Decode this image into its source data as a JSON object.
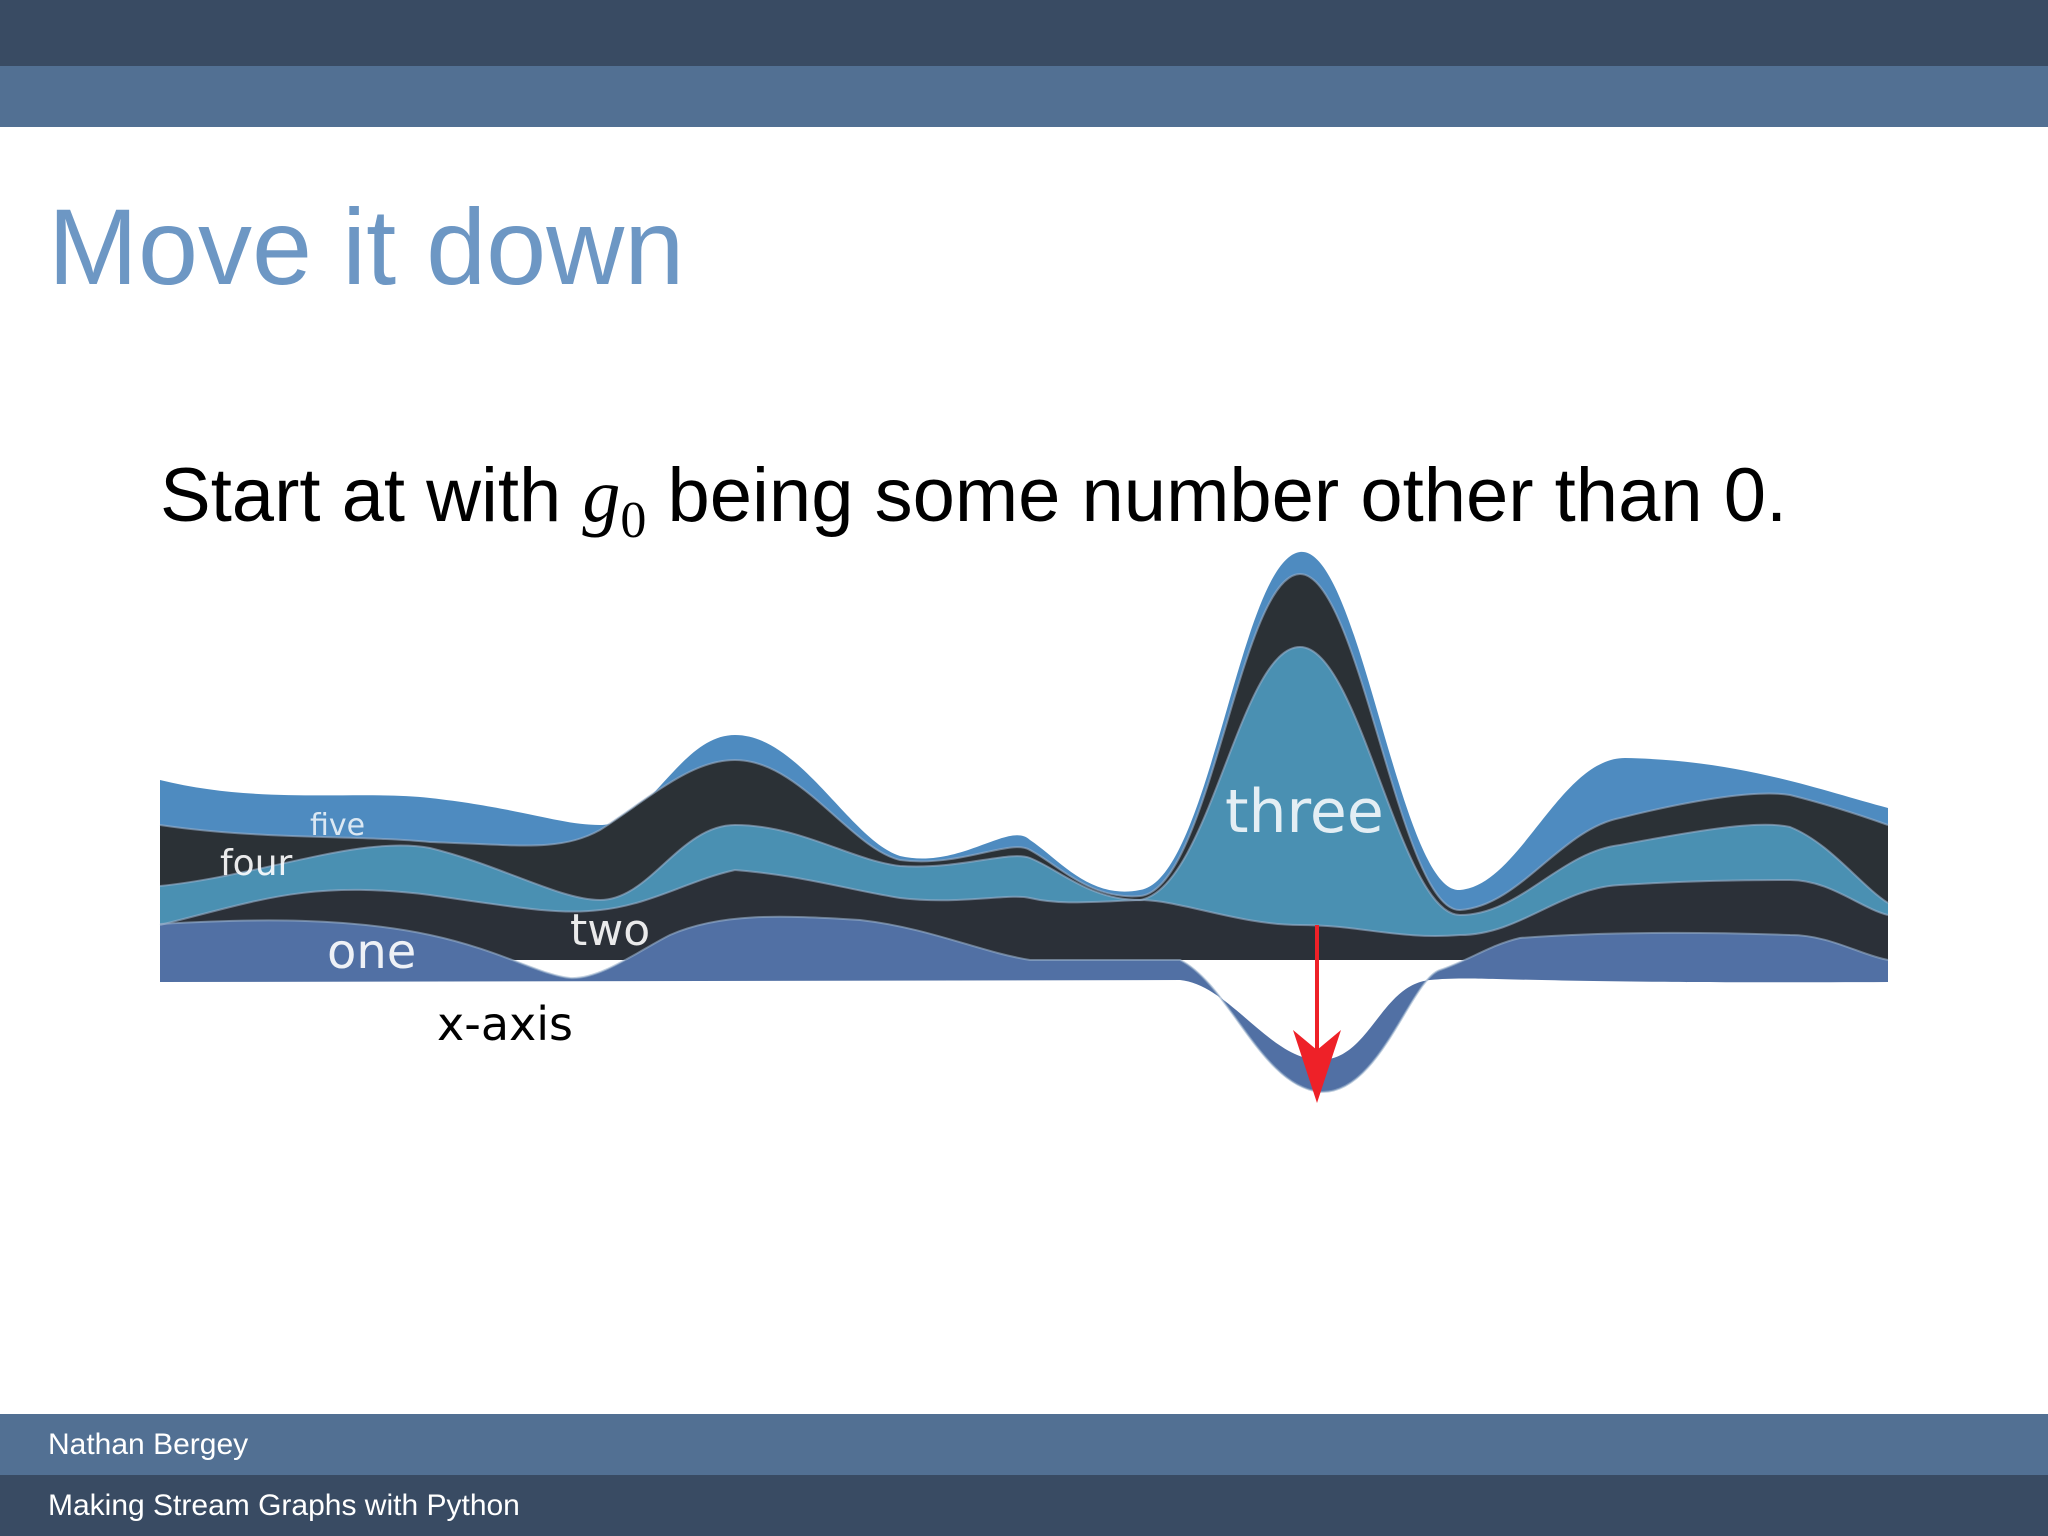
{
  "slide": {
    "title": "Move it down",
    "statement_before": "Start at with ",
    "math_var": "g",
    "math_sub": "0",
    "statement_after": " being some number other than 0."
  },
  "diagram": {
    "layers": [
      {
        "label": "one",
        "color": "#5170a4"
      },
      {
        "label": "two",
        "color": "#2b3038"
      },
      {
        "label": "three",
        "color": "#4a90b2"
      },
      {
        "label": "four",
        "color": "#2b3136"
      },
      {
        "label": "five",
        "color": "#4e8bc0"
      }
    ],
    "axis_label": "x-axis",
    "arrow_color": "#ee2128"
  },
  "footer": {
    "author": "Nathan Bergey",
    "talk_title": "Making Stream Graphs with Python"
  }
}
